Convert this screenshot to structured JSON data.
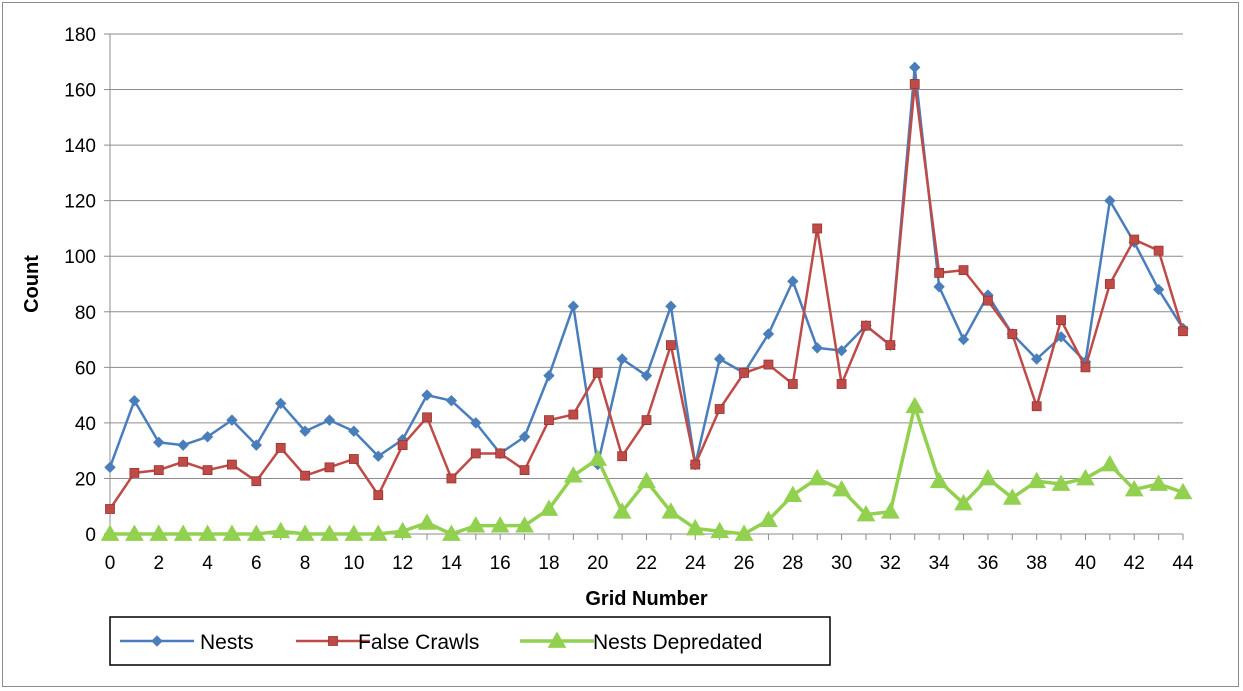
{
  "chart_data": {
    "type": "line",
    "title": "",
    "xlabel": "Grid Number",
    "ylabel": "Count",
    "xlim": [
      0,
      44
    ],
    "ylim": [
      0,
      180
    ],
    "yticks": [
      0,
      20,
      40,
      60,
      80,
      100,
      120,
      140,
      160,
      180
    ],
    "xticks": [
      0,
      2,
      4,
      6,
      8,
      10,
      12,
      14,
      16,
      18,
      20,
      22,
      24,
      26,
      28,
      30,
      32,
      34,
      36,
      38,
      40,
      42,
      44
    ],
    "grid": "horizontal",
    "legend": "bottom-left",
    "x": [
      0,
      1,
      2,
      3,
      4,
      5,
      6,
      7,
      8,
      9,
      10,
      11,
      12,
      13,
      14,
      15,
      16,
      17,
      18,
      19,
      20,
      21,
      22,
      23,
      24,
      25,
      26,
      27,
      28,
      29,
      30,
      31,
      32,
      33,
      34,
      35,
      36,
      37,
      38,
      39,
      40,
      41,
      42,
      43,
      44
    ],
    "series": [
      {
        "name": "Nests",
        "color": "#4a7ebb",
        "marker": "diamond",
        "values": [
          24,
          48,
          33,
          32,
          35,
          41,
          32,
          47,
          37,
          41,
          37,
          28,
          34,
          50,
          48,
          40,
          29,
          35,
          57,
          82,
          25,
          63,
          57,
          82,
          25,
          63,
          58,
          72,
          91,
          67,
          66,
          75,
          68,
          168,
          89,
          70,
          86,
          72,
          63,
          71,
          62,
          120,
          105,
          88,
          74
        ]
      },
      {
        "name": "False Crawls",
        "color": "#be4b48",
        "marker": "square",
        "values": [
          9,
          22,
          23,
          26,
          23,
          25,
          19,
          31,
          21,
          24,
          27,
          14,
          32,
          42,
          20,
          29,
          29,
          23,
          41,
          43,
          58,
          28,
          41,
          68,
          25,
          45,
          58,
          61,
          54,
          110,
          54,
          75,
          68,
          162,
          94,
          95,
          84,
          72,
          46,
          77,
          60,
          90,
          106,
          102,
          73
        ]
      },
      {
        "name": "Nests Depredated",
        "color": "#92d050",
        "marker": "triangle",
        "values": [
          0,
          0,
          0,
          0,
          0,
          0,
          0,
          1,
          0,
          0,
          0,
          0,
          1,
          4,
          0,
          3,
          3,
          3,
          9,
          21,
          27,
          8,
          19,
          8,
          2,
          1,
          0,
          5,
          14,
          20,
          16,
          7,
          8,
          46,
          19,
          11,
          20,
          13,
          19,
          18,
          20,
          25,
          16,
          18,
          15
        ]
      }
    ]
  }
}
